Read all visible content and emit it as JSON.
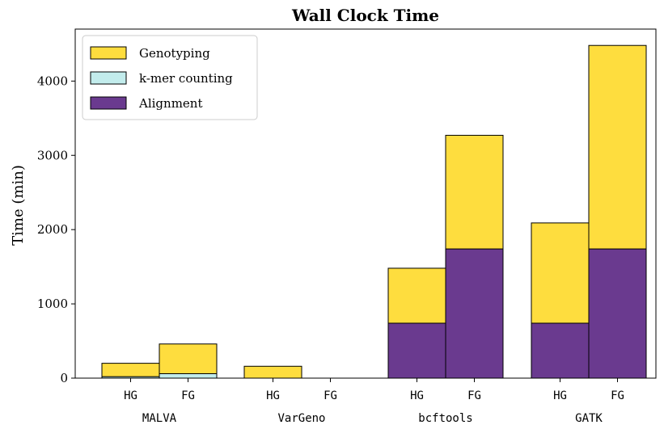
{
  "chart_data": {
    "type": "bar",
    "stacked": true,
    "title": "Wall Clock Time",
    "ylabel": "Time (min)",
    "ylim": [
      0,
      4700
    ],
    "yticks": [
      "0",
      "1000",
      "2000",
      "3000",
      "4000"
    ],
    "groups": [
      "MALVA",
      "VarGeno",
      "bcftools",
      "GATK"
    ],
    "subcategories": [
      "HG",
      "FG"
    ],
    "legend_position": "top-left",
    "series": [
      {
        "name": "Alignment",
        "color": "#6a3a8f",
        "values": [
          [
            0,
            0
          ],
          [
            0,
            0
          ],
          [
            740,
            1740
          ],
          [
            740,
            1740
          ]
        ]
      },
      {
        "name": "k-mer counting",
        "color": "#c2ecec",
        "values": [
          [
            20,
            60
          ],
          [
            0,
            0
          ],
          [
            0,
            0
          ],
          [
            0,
            0
          ]
        ]
      },
      {
        "name": "Genotyping",
        "color": "#fedd3e",
        "values": [
          [
            180,
            400
          ],
          [
            160,
            0
          ],
          [
            740,
            1530
          ],
          [
            1350,
            2740
          ]
        ]
      }
    ],
    "legend_order": [
      "Genotyping",
      "k-mer counting",
      "Alignment"
    ]
  }
}
